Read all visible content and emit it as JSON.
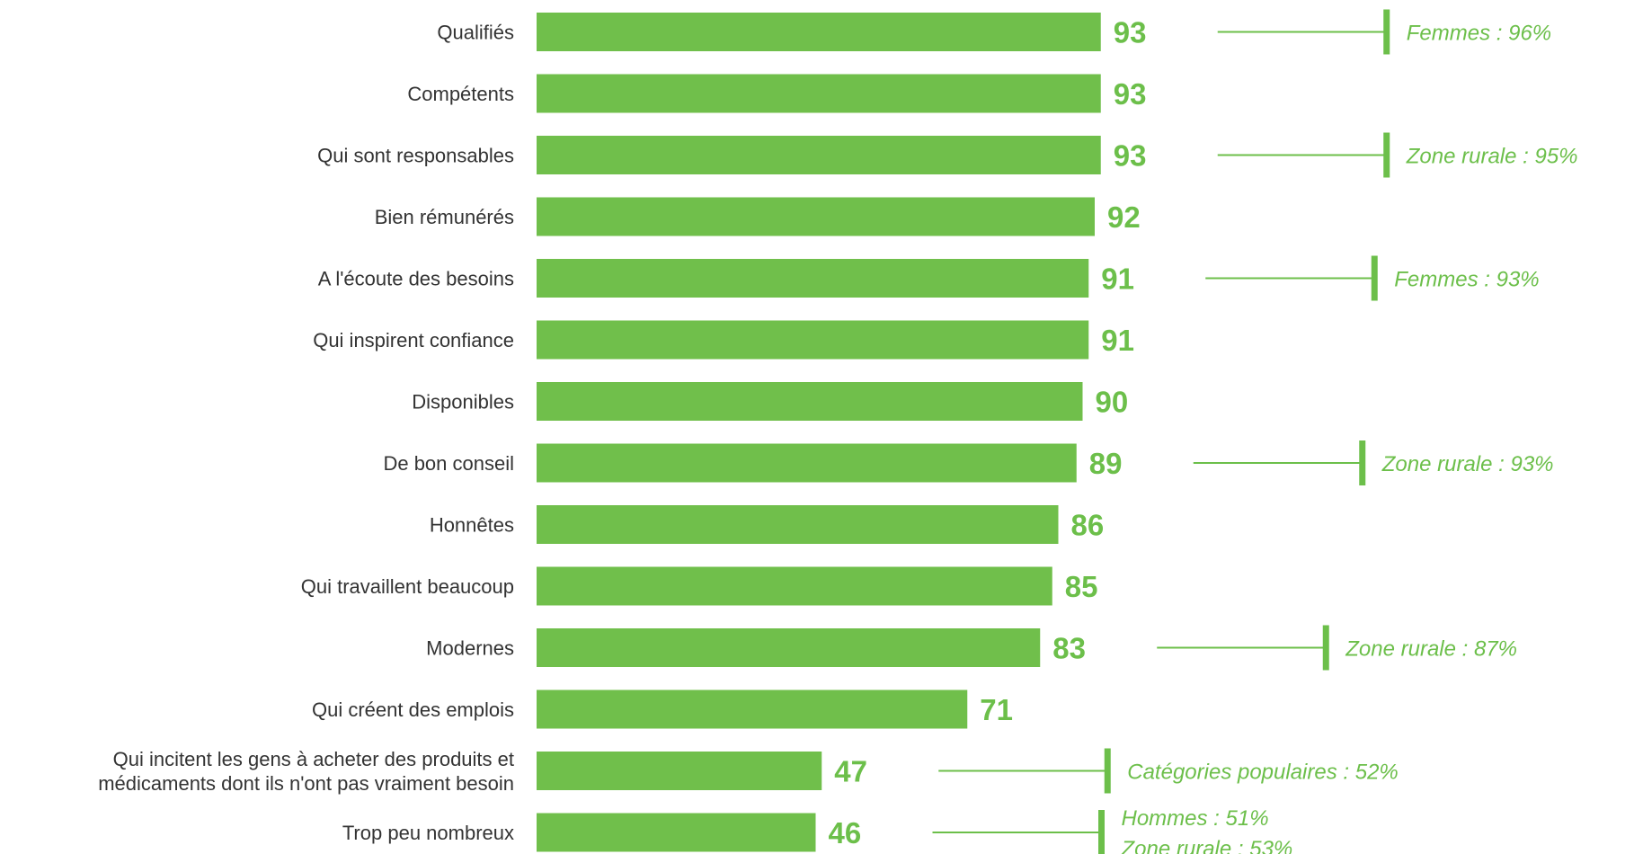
{
  "colors": {
    "bar": "#70bf4b",
    "value_text": "#6cbf4a",
    "annotation": "#6cbf4a",
    "category_text": "#333333"
  },
  "chart_data": {
    "type": "bar",
    "orientation": "horizontal",
    "categories": [
      [
        "Qualifiés"
      ],
      [
        "Compétents"
      ],
      [
        "Qui sont responsables"
      ],
      [
        "Bien rémunérés"
      ],
      [
        "A l'écoute des besoins"
      ],
      [
        "Qui inspirent confiance"
      ],
      [
        "Disponibles"
      ],
      [
        "De bon conseil"
      ],
      [
        "Honnêtes"
      ],
      [
        "Qui travaillent beaucoup"
      ],
      [
        "Modernes"
      ],
      [
        "Qui créent des emplois"
      ],
      [
        "Qui incitent les gens à acheter des produits et",
        "médicaments dont ils n'ont pas vraiment besoin"
      ],
      [
        "Trop peu nombreux"
      ]
    ],
    "values": [
      93,
      93,
      93,
      92,
      91,
      91,
      90,
      89,
      86,
      85,
      83,
      71,
      47,
      46
    ],
    "annotations": [
      [
        "Femmes : 96%"
      ],
      [],
      [
        "Zone rurale : 95%"
      ],
      [],
      [
        "Femmes : 93%"
      ],
      [],
      [],
      [
        "Zone rurale : 93%"
      ],
      [],
      [],
      [
        "Zone rurale : 87%"
      ],
      [],
      [
        "Catégories populaires : 52%"
      ],
      [
        "Hommes : 51%",
        "Zone rurale : 53%"
      ]
    ],
    "title": "",
    "xlabel": "",
    "ylabel": "",
    "xlim": [
      0,
      100
    ],
    "grid": false,
    "legend": "none"
  }
}
